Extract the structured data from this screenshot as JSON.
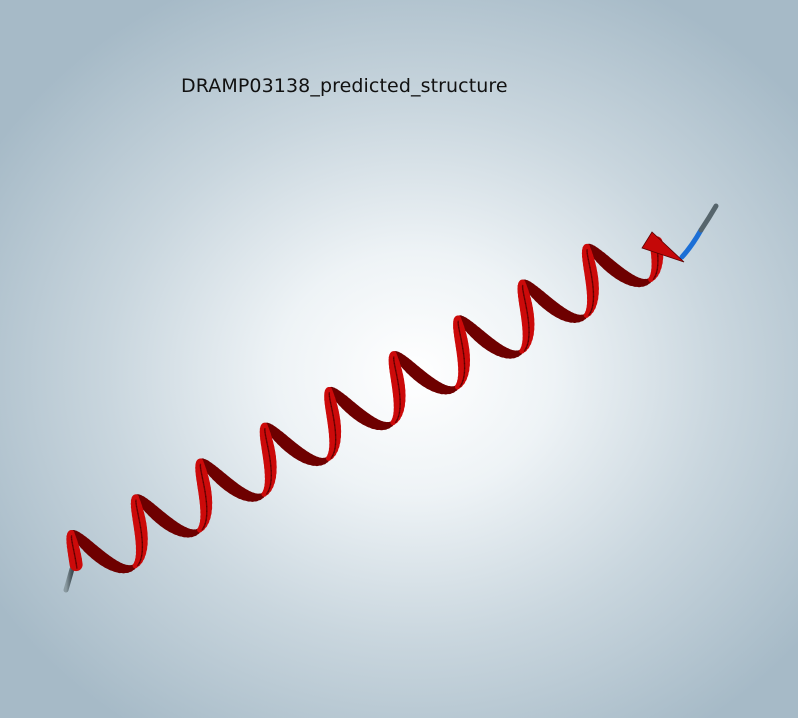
{
  "viewer": {
    "title": "DRAMP03138_predicted_structure"
  },
  "structure": {
    "representation": "cartoon",
    "secondary_structure": "alpha-helix",
    "helix_color": "#cc0a0a",
    "coil_color": "#5a6b73",
    "c_terminus_color": "#1c6fd6",
    "background_center_color": "#ffffff",
    "background_edge_color": "#a6bac7"
  }
}
